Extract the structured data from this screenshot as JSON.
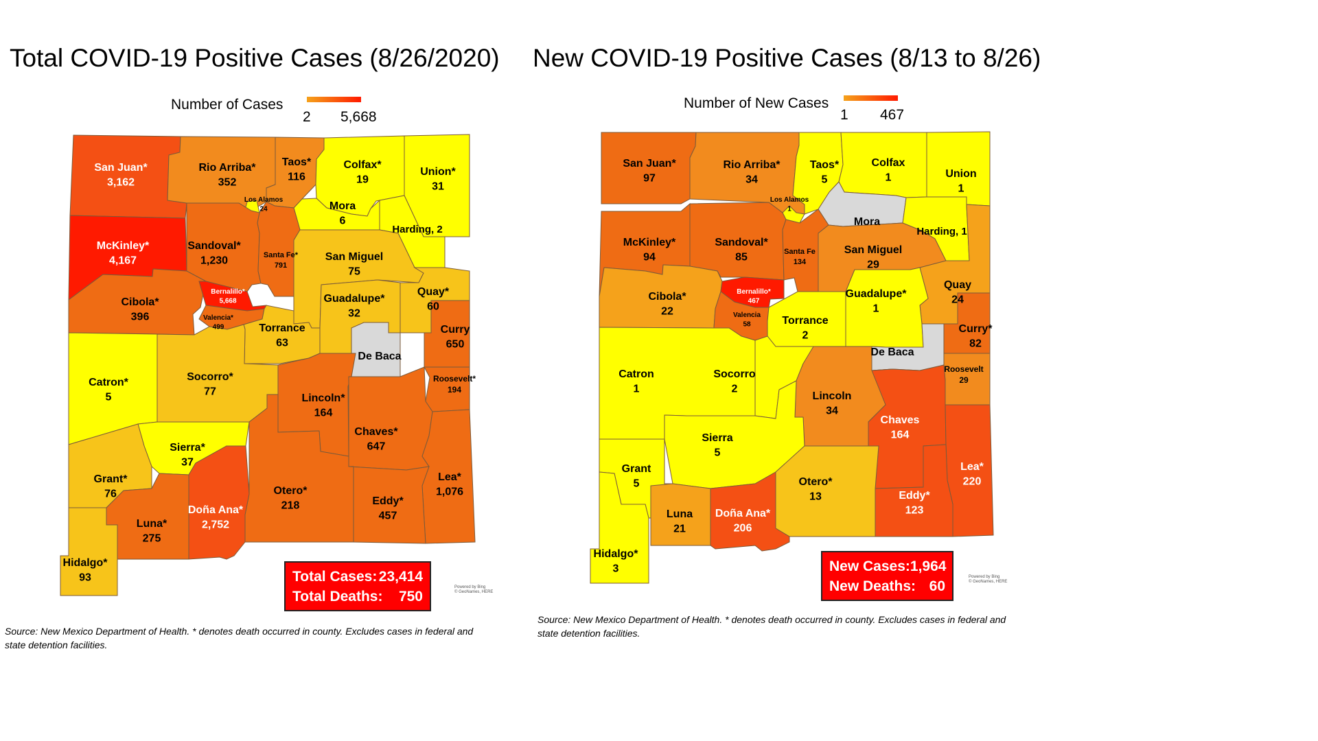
{
  "titles": {
    "left": "Total COVID-19 Positive Cases (8/26/2020)",
    "right": "New COVID-19 Positive Cases (8/13 to 8/26)"
  },
  "legends": {
    "left": {
      "label": "Number of Cases",
      "min": "2",
      "max": "5,668",
      "gradient": [
        "#f5a21b",
        "#ff1a00"
      ]
    },
    "right": {
      "label": "Number of New Cases",
      "min": "1",
      "max": "467",
      "gradient": [
        "#f5a21b",
        "#ff1a00"
      ]
    }
  },
  "colors": {
    "red": "#ff1a00",
    "orange_red": "#f45014",
    "dark_orange": "#ef6c14",
    "orange": "#f28b1e",
    "light_orange": "#f5a21b",
    "amber": "#f7c41a",
    "yellow": "#ffff00",
    "gray": "#d9d9d9"
  },
  "maps": {
    "left": {
      "counties": [
        {
          "name": "San Juan*",
          "value": "3,162",
          "color": "#f45014"
        },
        {
          "name": "Rio Arriba*",
          "value": "352",
          "color": "#f28b1e"
        },
        {
          "name": "Taos*",
          "value": "116",
          "color": "#f28b1e"
        },
        {
          "name": "Colfax*",
          "value": "19",
          "color": "#ffff00"
        },
        {
          "name": "Union*",
          "value": "31",
          "color": "#ffff00"
        },
        {
          "name": "Los Alamos",
          "value": "24",
          "color": "#ffff00"
        },
        {
          "name": "Mora",
          "value": "6",
          "color": "#ffff00"
        },
        {
          "name": "Harding, 2",
          "value": "",
          "color": "#ffff00"
        },
        {
          "name": "McKinley*",
          "value": "4,167",
          "color": "#ff1a00"
        },
        {
          "name": "Sandoval*",
          "value": "1,230",
          "color": "#ef6c14"
        },
        {
          "name": "Santa Fe*",
          "value": "791",
          "color": "#ef6c14"
        },
        {
          "name": "San Miguel",
          "value": "75",
          "color": "#f7c41a"
        },
        {
          "name": "Quay*",
          "value": "60",
          "color": "#f7c41a"
        },
        {
          "name": "Cibola*",
          "value": "396",
          "color": "#ef6c14"
        },
        {
          "name": "Bernalillo*",
          "value": "5,668",
          "color": "#ff1a00"
        },
        {
          "name": "Valencia*",
          "value": "499",
          "color": "#ef6c14"
        },
        {
          "name": "Guadalupe*",
          "value": "32",
          "color": "#f7c41a"
        },
        {
          "name": "Curry",
          "value": "650",
          "color": "#ef6c14"
        },
        {
          "name": "Torrance",
          "value": "63",
          "color": "#f7c41a"
        },
        {
          "name": "De Baca",
          "value": "",
          "color": "#d9d9d9"
        },
        {
          "name": "Catron*",
          "value": "5",
          "color": "#ffff00"
        },
        {
          "name": "Socorro*",
          "value": "77",
          "color": "#f7c41a"
        },
        {
          "name": "Lincoln*",
          "value": "164",
          "color": "#ef6c14"
        },
        {
          "name": "Roosevelt*",
          "value": "194",
          "color": "#ef6c14"
        },
        {
          "name": "Chaves*",
          "value": "647",
          "color": "#ef6c14"
        },
        {
          "name": "Sierra*",
          "value": "37",
          "color": "#ffff00"
        },
        {
          "name": "Grant*",
          "value": "76",
          "color": "#f7c41a"
        },
        {
          "name": "Lea*",
          "value": "1,076",
          "color": "#ef6c14"
        },
        {
          "name": "Otero*",
          "value": "218",
          "color": "#ef6c14"
        },
        {
          "name": "Eddy*",
          "value": "457",
          "color": "#ef6c14"
        },
        {
          "name": "Luna*",
          "value": "275",
          "color": "#ef6c14"
        },
        {
          "name": "Doña Ana*",
          "value": "2,752",
          "color": "#f45014"
        },
        {
          "name": "Hidalgo*",
          "value": "93",
          "color": "#f7c41a"
        }
      ],
      "totals": {
        "cases_label": "Total Cases:",
        "cases": "23,414",
        "deaths_label": "Total Deaths:",
        "deaths": "750"
      },
      "credit": [
        "Powered by Bing",
        "© GeoNames, HERE"
      ],
      "source": "Source: New Mexico Department of Health. * denotes death occurred in county. Excludes cases in federal and state detention facilities."
    },
    "right": {
      "counties": [
        {
          "name": "San Juan*",
          "value": "97",
          "color": "#ef6c14"
        },
        {
          "name": "Rio Arriba*",
          "value": "34",
          "color": "#f28b1e"
        },
        {
          "name": "Taos*",
          "value": "5",
          "color": "#ffff00"
        },
        {
          "name": "Colfax",
          "value": "1",
          "color": "#ffff00"
        },
        {
          "name": "Union",
          "value": "1",
          "color": "#ffff00"
        },
        {
          "name": "Los Alamos",
          "value": "1",
          "color": "#ffff00"
        },
        {
          "name": "Mora",
          "value": "",
          "color": "#d9d9d9"
        },
        {
          "name": "Harding, 1",
          "value": "",
          "color": "#ffff00"
        },
        {
          "name": "McKinley*",
          "value": "94",
          "color": "#ef6c14"
        },
        {
          "name": "Sandoval*",
          "value": "85",
          "color": "#ef6c14"
        },
        {
          "name": "Santa Fe",
          "value": "134",
          "color": "#ef6c14"
        },
        {
          "name": "San Miguel",
          "value": "29",
          "color": "#f28b1e"
        },
        {
          "name": "Quay",
          "value": "24",
          "color": "#f5a21b"
        },
        {
          "name": "Cibola*",
          "value": "22",
          "color": "#f5a21b"
        },
        {
          "name": "Bernalillo*",
          "value": "467",
          "color": "#ff1a00"
        },
        {
          "name": "Valencia",
          "value": "58",
          "color": "#ef6c14"
        },
        {
          "name": "Guadalupe*",
          "value": "1",
          "color": "#ffff00"
        },
        {
          "name": "Curry*",
          "value": "82",
          "color": "#ef6c14"
        },
        {
          "name": "Torrance",
          "value": "2",
          "color": "#ffff00"
        },
        {
          "name": "De Baca",
          "value": "",
          "color": "#d9d9d9"
        },
        {
          "name": "Catron",
          "value": "1",
          "color": "#ffff00"
        },
        {
          "name": "Socorro",
          "value": "2",
          "color": "#ffff00"
        },
        {
          "name": "Lincoln",
          "value": "34",
          "color": "#f28b1e"
        },
        {
          "name": "Roosevelt",
          "value": "29",
          "color": "#f28b1e"
        },
        {
          "name": "Chaves",
          "value": "164",
          "color": "#f45014"
        },
        {
          "name": "Sierra",
          "value": "5",
          "color": "#ffff00"
        },
        {
          "name": "Grant",
          "value": "5",
          "color": "#ffff00"
        },
        {
          "name": "Lea*",
          "value": "220",
          "color": "#f45014"
        },
        {
          "name": "Otero*",
          "value": "13",
          "color": "#f7c41a"
        },
        {
          "name": "Eddy*",
          "value": "123",
          "color": "#f45014"
        },
        {
          "name": "Luna",
          "value": "21",
          "color": "#f5a21b"
        },
        {
          "name": "Doña Ana*",
          "value": "206",
          "color": "#f45014"
        },
        {
          "name": "Hidalgo*",
          "value": "3",
          "color": "#ffff00"
        }
      ],
      "totals": {
        "cases_label": "New Cases:",
        "cases": "1,964",
        "deaths_label": "New Deaths:",
        "deaths": "60"
      },
      "credit": [
        "Powered by Bing",
        "© GeoNames, HERE"
      ],
      "source": "Source: New Mexico Department of Health. * denotes death occurred in county. Excludes cases in federal and state detention facilities."
    }
  }
}
